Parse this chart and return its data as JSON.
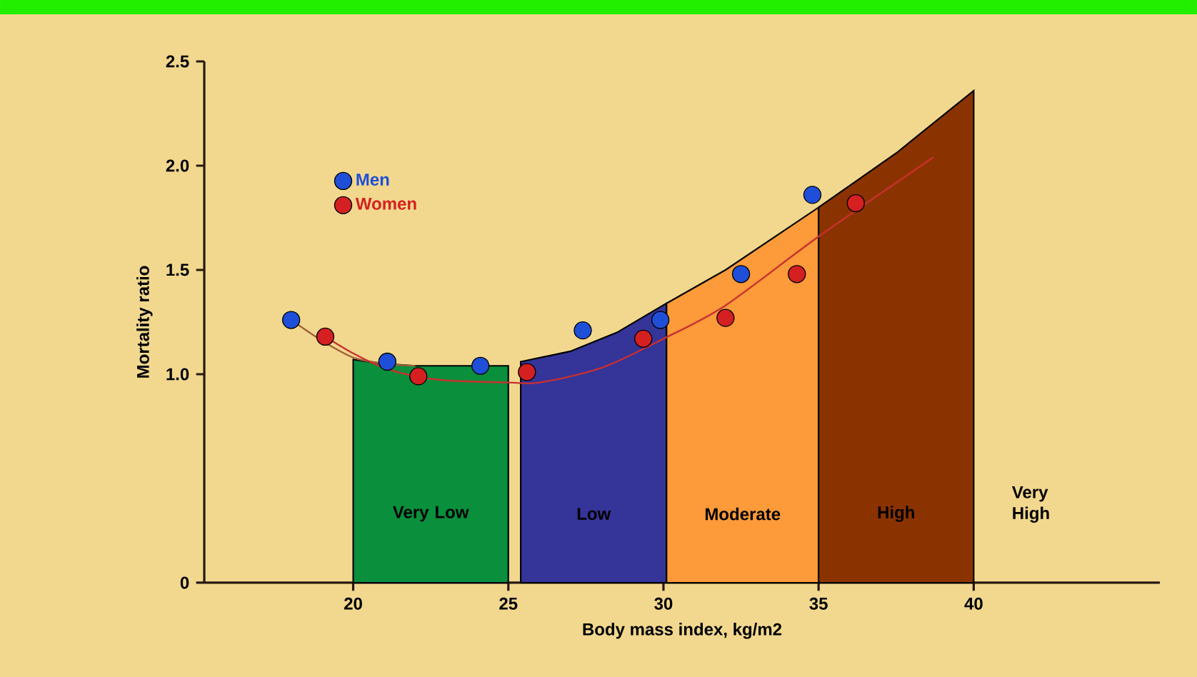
{
  "chart_data": {
    "type": "scatter",
    "xlabel": "Body mass index, kg/m2",
    "ylabel": "Mortality ratio",
    "xlim": [
      15.2,
      46
    ],
    "ylim": [
      0,
      2.5
    ],
    "xticks": [
      20,
      25,
      30,
      35,
      40
    ],
    "yticks": [
      0,
      {
        "value": 1,
        "label": "1.0"
      },
      1.5,
      {
        "value": 2,
        "label": "2.0"
      },
      2.5
    ],
    "legend": "top left",
    "grid": false,
    "series": [
      {
        "name": "Men",
        "marker": "circle",
        "color": "#1f4fd8",
        "x": [
          18.0,
          21.1,
          24.1,
          27.4,
          29.9,
          32.5,
          34.8
        ],
        "values": [
          1.26,
          1.06,
          1.04,
          1.21,
          1.26,
          1.48,
          1.86
        ]
      },
      {
        "name": "Women",
        "marker": "circle",
        "color": "#d42020",
        "x": [
          19.1,
          22.1,
          25.6,
          29.35,
          32.0,
          34.3,
          36.2
        ],
        "values": [
          1.18,
          0.99,
          1.01,
          1.17,
          1.27,
          1.48,
          1.82
        ]
      },
      {
        "type": "line",
        "color": "#a0603a",
        "marker": "none",
        "x": [
          18.0,
          19.0,
          20.0,
          21.0,
          22.0
        ],
        "values": [
          1.26,
          1.16,
          1.08,
          1.05,
          1.04
        ]
      },
      {
        "type": "line",
        "color": "#c83030",
        "marker": "none",
        "x": [
          19.1,
          20,
          21,
          22,
          23,
          25,
          26,
          28,
          30,
          32,
          35,
          38.7
        ],
        "values": [
          1.18,
          1.1,
          1.03,
          0.99,
          0.97,
          0.96,
          0.96,
          1.03,
          1.17,
          1.33,
          1.66,
          2.04
        ]
      },
      {
        "name": "Very Low",
        "type": "area",
        "marker": "none",
        "color": "#0a8f3c",
        "x": [
          20,
          21,
          22,
          25
        ],
        "values": [
          1.07,
          1.05,
          1.04,
          1.04
        ]
      },
      {
        "name": "Low",
        "type": "area",
        "marker": "none",
        "color": "#343499",
        "x": [
          25.4,
          27,
          28.5,
          30.1
        ],
        "values": [
          1.06,
          1.11,
          1.2,
          1.34
        ]
      },
      {
        "name": "Moderate",
        "type": "area",
        "marker": "none",
        "color": "#fd9a3a",
        "x": [
          30.1,
          32,
          35
        ],
        "values": [
          1.34,
          1.5,
          1.8
        ]
      },
      {
        "name": "High",
        "type": "area",
        "marker": "none",
        "color": "#8b3300",
        "x": [
          35,
          37.5,
          40
        ],
        "values": [
          1.8,
          2.06,
          2.36
        ]
      }
    ],
    "annotations": [
      "Very High"
    ]
  }
}
